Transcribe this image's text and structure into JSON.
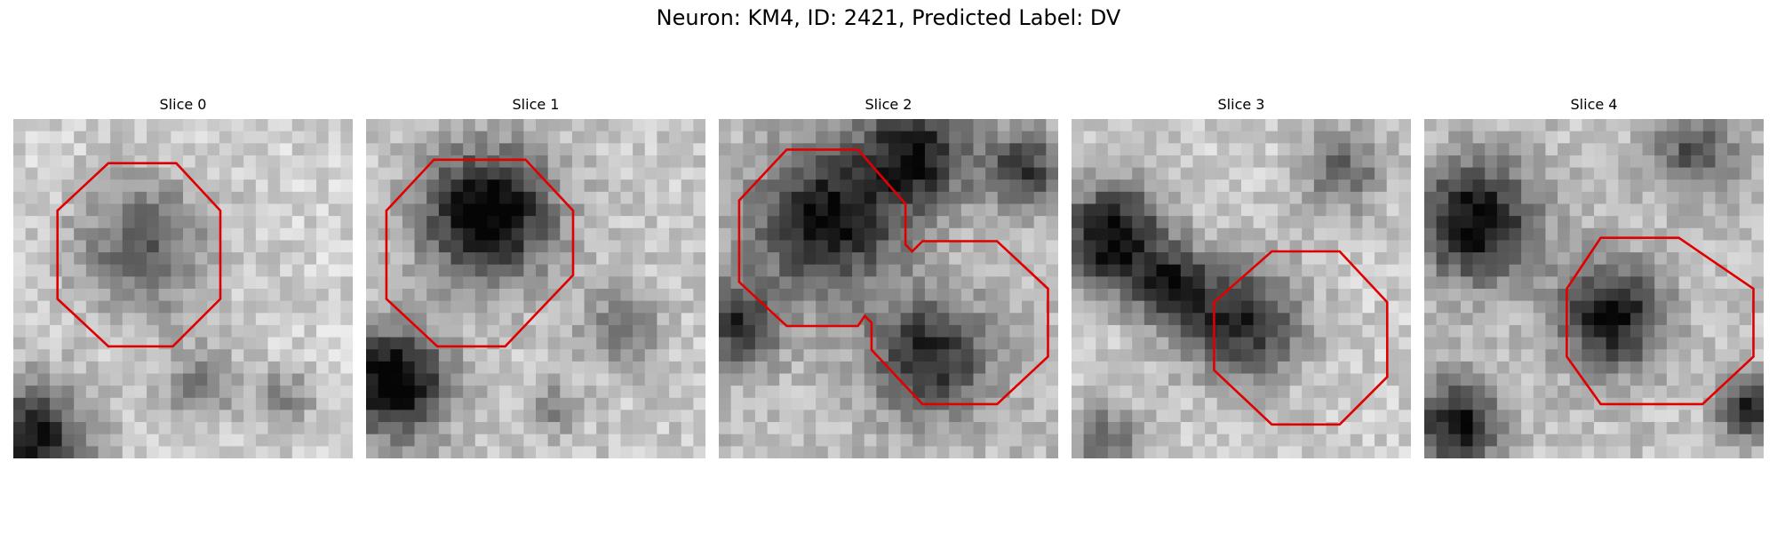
{
  "figure": {
    "title": "Neuron: KM4, ID: 2421, Predicted Label: DV",
    "outline_color": "#e00000",
    "panels": [
      {
        "title": "Slice 0",
        "grid": 28,
        "seed": 11,
        "blobs": [
          [
            0.38,
            0.38,
            0.26,
            0.45
          ],
          [
            0.05,
            0.95,
            0.22,
            0.75
          ],
          [
            0.55,
            0.78,
            0.14,
            0.35
          ],
          [
            0.8,
            0.82,
            0.12,
            0.3
          ]
        ],
        "base": 0.82,
        "outline": [
          [
            0.28,
            0.13
          ],
          [
            0.48,
            0.13
          ],
          [
            0.61,
            0.27
          ],
          [
            0.61,
            0.53
          ],
          [
            0.47,
            0.67
          ],
          [
            0.28,
            0.67
          ],
          [
            0.13,
            0.53
          ],
          [
            0.13,
            0.27
          ]
        ]
      },
      {
        "title": "Slice 1",
        "grid": 28,
        "seed": 23,
        "blobs": [
          [
            0.36,
            0.28,
            0.24,
            0.85
          ],
          [
            0.08,
            0.78,
            0.2,
            0.85
          ],
          [
            0.75,
            0.62,
            0.14,
            0.35
          ],
          [
            0.55,
            0.85,
            0.1,
            0.25
          ]
        ],
        "base": 0.78,
        "outline": [
          [
            0.2,
            0.12
          ],
          [
            0.47,
            0.12
          ],
          [
            0.61,
            0.27
          ],
          [
            0.61,
            0.46
          ],
          [
            0.41,
            0.67
          ],
          [
            0.21,
            0.67
          ],
          [
            0.06,
            0.53
          ],
          [
            0.06,
            0.27
          ]
        ]
      },
      {
        "title": "Slice 2",
        "grid": 28,
        "seed": 37,
        "blobs": [
          [
            0.32,
            0.3,
            0.26,
            0.7
          ],
          [
            0.58,
            0.1,
            0.2,
            0.65
          ],
          [
            0.62,
            0.7,
            0.22,
            0.6
          ],
          [
            0.05,
            0.6,
            0.16,
            0.55
          ],
          [
            0.9,
            0.15,
            0.15,
            0.5
          ]
        ],
        "base": 0.74,
        "outline": [
          [
            0.2,
            0.09
          ],
          [
            0.41,
            0.09
          ],
          [
            0.55,
            0.25
          ],
          [
            0.55,
            0.37
          ],
          [
            0.57,
            0.39
          ],
          [
            0.6,
            0.36
          ],
          [
            0.82,
            0.36
          ],
          [
            0.97,
            0.5
          ],
          [
            0.97,
            0.7
          ],
          [
            0.82,
            0.84
          ],
          [
            0.6,
            0.84
          ],
          [
            0.45,
            0.68
          ],
          [
            0.45,
            0.6
          ],
          [
            0.43,
            0.58
          ],
          [
            0.41,
            0.61
          ],
          [
            0.2,
            0.61
          ],
          [
            0.06,
            0.48
          ],
          [
            0.06,
            0.24
          ]
        ]
      },
      {
        "title": "Slice 3",
        "grid": 28,
        "seed": 53,
        "blobs": [
          [
            0.5,
            0.6,
            0.22,
            0.65
          ],
          [
            0.12,
            0.35,
            0.2,
            0.8
          ],
          [
            0.3,
            0.5,
            0.14,
            0.55
          ],
          [
            0.8,
            0.15,
            0.16,
            0.4
          ],
          [
            0.1,
            0.95,
            0.14,
            0.4
          ]
        ],
        "base": 0.8,
        "outline": [
          [
            0.59,
            0.39
          ],
          [
            0.79,
            0.39
          ],
          [
            0.93,
            0.54
          ],
          [
            0.93,
            0.76
          ],
          [
            0.79,
            0.9
          ],
          [
            0.59,
            0.9
          ],
          [
            0.42,
            0.74
          ],
          [
            0.42,
            0.54
          ]
        ]
      },
      {
        "title": "Slice 4",
        "grid": 28,
        "seed": 71,
        "blobs": [
          [
            0.55,
            0.58,
            0.2,
            0.7
          ],
          [
            0.15,
            0.3,
            0.22,
            0.75
          ],
          [
            0.1,
            0.9,
            0.16,
            0.7
          ],
          [
            0.95,
            0.85,
            0.1,
            0.7
          ],
          [
            0.8,
            0.1,
            0.16,
            0.45
          ]
        ],
        "base": 0.76,
        "outline": [
          [
            0.52,
            0.35
          ],
          [
            0.75,
            0.35
          ],
          [
            0.97,
            0.5
          ],
          [
            0.97,
            0.7
          ],
          [
            0.82,
            0.84
          ],
          [
            0.52,
            0.84
          ],
          [
            0.42,
            0.7
          ],
          [
            0.42,
            0.5
          ]
        ]
      }
    ]
  }
}
